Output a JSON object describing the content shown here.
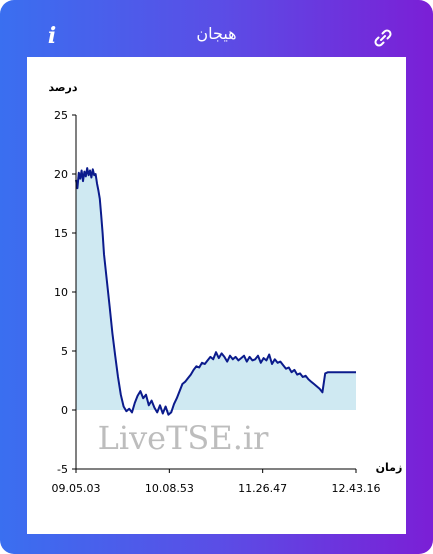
{
  "header": {
    "title": "هیجان",
    "info_icon": "info-icon",
    "link_icon": "link-icon",
    "info_label": "i"
  },
  "colors": {
    "gradient_start": "#3a6ff0",
    "gradient_end": "#7b1fd6",
    "line": "#0b1b8c",
    "fill": "#cfe9f2"
  },
  "watermark": "LiveTSE.ir",
  "chart_data": {
    "type": "area",
    "ylabel": "درصد",
    "xlabel": "زمان",
    "ylim": [
      -5,
      25
    ],
    "yticks": [
      "25",
      "20",
      "15",
      "10",
      "5",
      "0",
      "-5"
    ],
    "xticks": [
      "09.05.03",
      "10.08.53",
      "11.26.47",
      "12.43.16"
    ],
    "series": [
      {
        "x": [
          0,
          0.5,
          1,
          1.5,
          2,
          2.5,
          3,
          3.5,
          4,
          4.5,
          5,
          5.5,
          6,
          6.5,
          7,
          7.5,
          8,
          8.5,
          9,
          9.5,
          10,
          11,
          12,
          13,
          14,
          15,
          16,
          17,
          18,
          19,
          20,
          21,
          22,
          23,
          24,
          25,
          26,
          27,
          28,
          29,
          30,
          31,
          32,
          33,
          34,
          35,
          36,
          37,
          38,
          39,
          40,
          41,
          42,
          43,
          44,
          45,
          46,
          47,
          48,
          49,
          50,
          51,
          52,
          53,
          54,
          55,
          56,
          57,
          58,
          59,
          60,
          61,
          62,
          63,
          64,
          65,
          66,
          67,
          68,
          69,
          70,
          71,
          72,
          73,
          74,
          75,
          76,
          77,
          78,
          79,
          80,
          81,
          82,
          83,
          84,
          85,
          86,
          87,
          88,
          89,
          90,
          91,
          92,
          93,
          94,
          95,
          96,
          97,
          98,
          99,
          100
        ],
        "values": [
          19.5,
          18.8,
          20.1,
          19.6,
          20.3,
          19.4,
          20.2,
          19.8,
          20.5,
          19.9,
          20.3,
          19.7,
          20.4,
          19.9,
          20.0,
          19.2,
          18.6,
          17.9,
          16.5,
          15.0,
          13.2,
          11.0,
          8.8,
          6.5,
          4.6,
          2.8,
          1.3,
          0.3,
          -0.1,
          0.1,
          -0.2,
          0.6,
          1.2,
          1.6,
          1.0,
          1.3,
          0.4,
          0.8,
          0.2,
          -0.2,
          0.4,
          -0.3,
          0.3,
          -0.4,
          -0.2,
          0.5,
          1.0,
          1.6,
          2.2,
          2.4,
          2.7,
          3.0,
          3.4,
          3.7,
          3.6,
          4.0,
          3.9,
          4.2,
          4.5,
          4.3,
          4.9,
          4.4,
          4.8,
          4.5,
          4.1,
          4.6,
          4.3,
          4.5,
          4.2,
          4.4,
          4.6,
          4.1,
          4.5,
          4.2,
          4.3,
          4.6,
          4.0,
          4.4,
          4.2,
          4.7,
          3.9,
          4.3,
          4.0,
          4.1,
          3.8,
          3.5,
          3.6,
          3.2,
          3.4,
          3.0,
          3.1,
          2.8,
          2.9,
          2.6,
          2.4,
          2.2,
          2.0,
          1.8,
          1.5,
          3.1,
          3.2,
          3.2,
          3.2,
          3.2,
          3.2,
          3.2,
          3.2,
          3.2,
          3.2,
          3.2,
          3.2
        ]
      }
    ],
    "xlim": [
      0,
      100
    ],
    "grid": false,
    "legend": false
  }
}
